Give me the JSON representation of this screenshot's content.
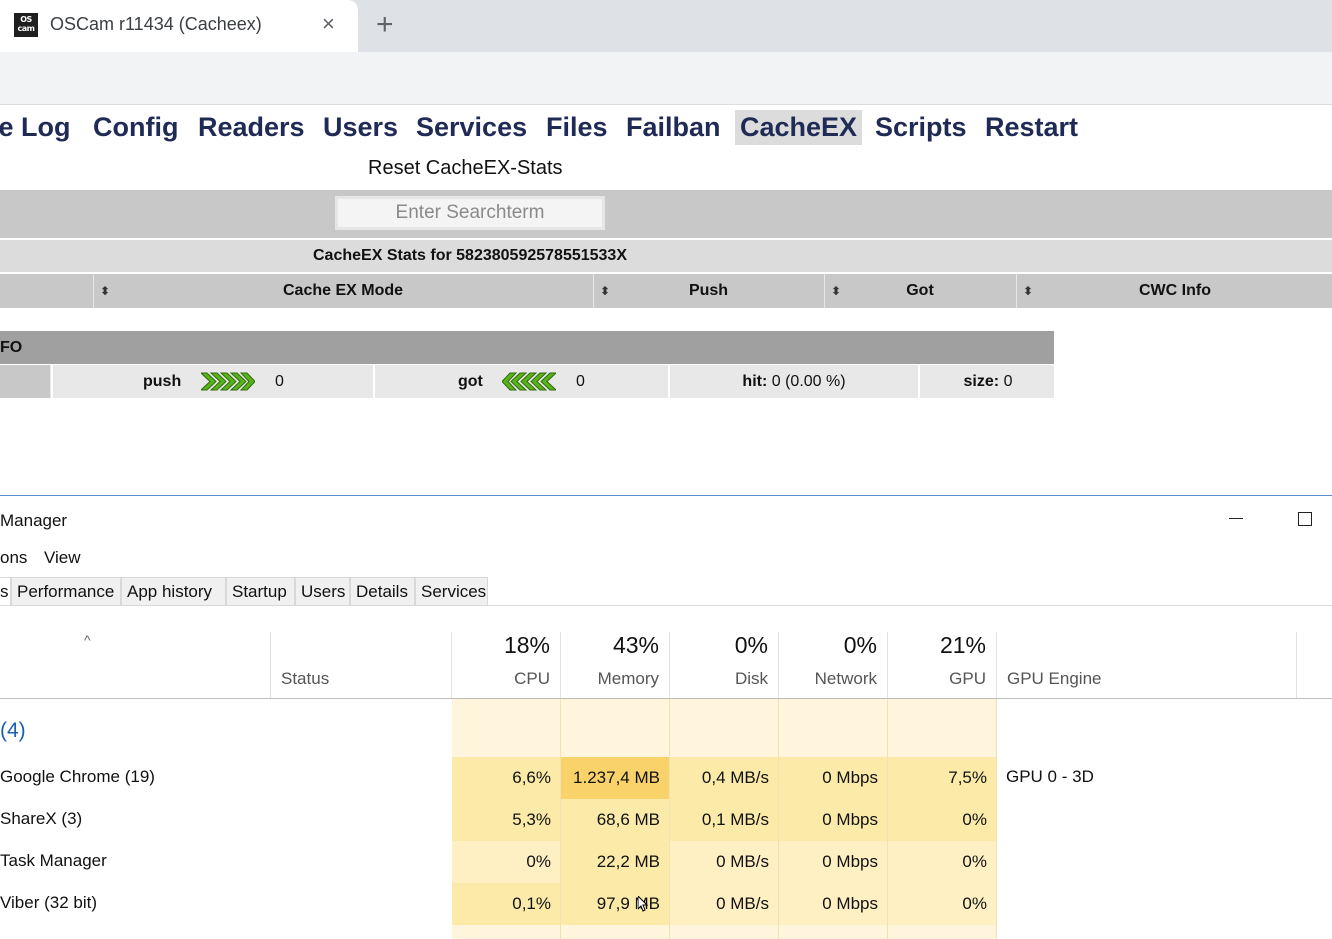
{
  "browser": {
    "tab_title": "OSCam r11434 (Cacheex)",
    "favicon_text_top": "OS",
    "favicon_text_bottom": "cam",
    "close_glyph": "×",
    "new_tab_glyph": "+"
  },
  "oscam": {
    "menu": [
      "re Log",
      "Config",
      "Readers",
      "Users",
      "Services",
      "Files",
      "Failban",
      "CacheEX",
      "Scripts",
      "Restart"
    ],
    "active_menu": "CacheEX",
    "reset_link": "Reset CacheEX-Stats",
    "search_placeholder": "Enter Searchterm",
    "stats_title": "CacheEX Stats for 582380592578551533X",
    "columns": [
      "Cache EX Mode",
      "Push",
      "Got",
      "CWC Info"
    ],
    "sort_glyph": "⬍",
    "info_header": "FO",
    "info": {
      "push_label": "push",
      "push_value": "0",
      "got_label": "got",
      "got_value": "0",
      "hit_label": "hit:",
      "hit_value": "0 (0.00 %)",
      "size_label": "size:",
      "size_value": "0"
    },
    "arrow_color": "#58b21a"
  },
  "task_manager": {
    "title": "Manager",
    "menu": [
      "ons",
      "View"
    ],
    "tabs": [
      "s",
      "Performance",
      "App history",
      "Startup",
      "Users",
      "Details",
      "Services"
    ],
    "sort_caret": "^",
    "header": {
      "status_label": "Status",
      "cpu_pct": "18%",
      "cpu_label": "CPU",
      "mem_pct": "43%",
      "mem_label": "Memory",
      "disk_pct": "0%",
      "disk_label": "Disk",
      "net_pct": "0%",
      "net_label": "Network",
      "gpu_pct": "21%",
      "gpu_label": "GPU",
      "engine_label": "GPU Engine"
    },
    "group_label": "(4)",
    "processes": [
      {
        "name": "Google Chrome (19)",
        "cpu": "6,6%",
        "memory": "1.237,4 MB",
        "disk": "0,4 MB/s",
        "network": "0 Mbps",
        "gpu": "7,5%",
        "engine": "GPU 0 - 3D"
      },
      {
        "name": "ShareX (3)",
        "cpu": "5,3%",
        "memory": "68,6 MB",
        "disk": "0,1 MB/s",
        "network": "0 Mbps",
        "gpu": "0%",
        "engine": ""
      },
      {
        "name": "Task Manager",
        "cpu": "0%",
        "memory": "22,2 MB",
        "disk": "0 MB/s",
        "network": "0 Mbps",
        "gpu": "0%",
        "engine": ""
      },
      {
        "name": "Viber (32 bit)",
        "cpu": "0,1%",
        "memory": "97,9 MB",
        "disk": "0 MB/s",
        "network": "0 Mbps",
        "gpu": "0%",
        "engine": ""
      }
    ],
    "colors": {
      "heat_light": "#fff5dc",
      "heat_mid": "#fbeaa8",
      "heat_strong": "#f9d26a",
      "group_blue": "#1a5fb4"
    }
  }
}
